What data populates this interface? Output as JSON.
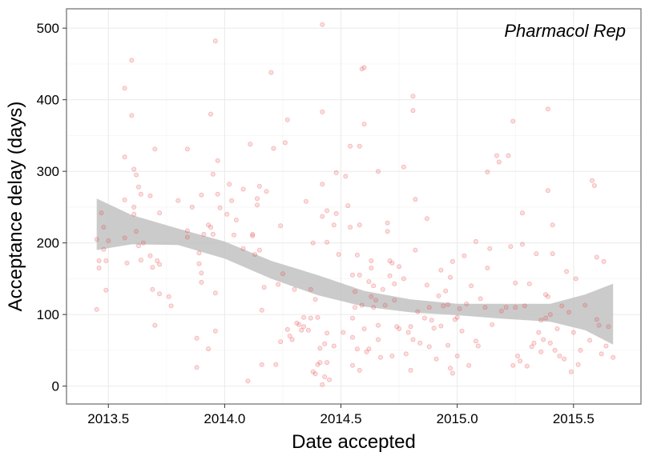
{
  "chart_data": {
    "type": "scatter",
    "title": "",
    "annotation": "Pharmacol Rep",
    "xlabel": "Date accepted",
    "ylabel": "Acceptance delay (days)",
    "xlim": [
      2013.32,
      2015.79
    ],
    "ylim": [
      -25,
      527
    ],
    "xticks": [
      2013.5,
      2014.0,
      2014.5,
      2015.0,
      2015.5
    ],
    "xtick_labels": [
      "2013.5",
      "2014.0",
      "2014.5",
      "2015.0",
      "2015.5"
    ],
    "yticks": [
      0,
      100,
      200,
      300,
      400,
      500
    ],
    "ytick_labels": [
      "0",
      "100",
      "200",
      "300",
      "400",
      "500"
    ],
    "grid": true,
    "legend": "none",
    "colors": {
      "points": "#e8474a",
      "band": "#c2c2c2",
      "panel_border": "#7f7f7f",
      "grid_major": "#ebebeb",
      "grid_minor": "#f5f5f5"
    },
    "smooth_band": {
      "x": [
        2013.45,
        2013.6,
        2013.8,
        2014.0,
        2014.2,
        2014.4,
        2014.6,
        2014.8,
        2015.0,
        2015.2,
        2015.4,
        2015.55,
        2015.67
      ],
      "lower": [
        190,
        198,
        197,
        178,
        150,
        127,
        111,
        103,
        99,
        94,
        90,
        78,
        58
      ],
      "upper": [
        262,
        239,
        220,
        202,
        175,
        155,
        133,
        121,
        115,
        115,
        115,
        128,
        143
      ]
    },
    "points": [
      [
        2013.45,
        205
      ],
      [
        2013.45,
        107
      ],
      [
        2013.46,
        175
      ],
      [
        2013.46,
        165
      ],
      [
        2013.47,
        242
      ],
      [
        2013.48,
        222
      ],
      [
        2013.48,
        191
      ],
      [
        2013.49,
        134
      ],
      [
        2013.5,
        203
      ],
      [
        2013.49,
        175
      ],
      [
        2013.57,
        416
      ],
      [
        2013.57,
        320
      ],
      [
        2013.57,
        260
      ],
      [
        2013.57,
        207
      ],
      [
        2013.58,
        172
      ],
      [
        2013.6,
        455
      ],
      [
        2013.6,
        378
      ],
      [
        2013.61,
        303
      ],
      [
        2013.61,
        250
      ],
      [
        2013.61,
        240
      ],
      [
        2013.62,
        295
      ],
      [
        2013.62,
        216
      ],
      [
        2013.63,
        196
      ],
      [
        2013.63,
        278
      ],
      [
        2013.64,
        268
      ],
      [
        2013.65,
        200
      ],
      [
        2013.64,
        176
      ],
      [
        2013.68,
        266
      ],
      [
        2013.68,
        182
      ],
      [
        2013.69,
        166
      ],
      [
        2013.69,
        135
      ],
      [
        2013.7,
        331
      ],
      [
        2013.7,
        85
      ],
      [
        2013.71,
        175
      ],
      [
        2013.72,
        242
      ],
      [
        2013.72,
        170
      ],
      [
        2013.72,
        129
      ],
      [
        2013.76,
        125
      ],
      [
        2013.77,
        112
      ],
      [
        2013.8,
        259
      ],
      [
        2013.84,
        331
      ],
      [
        2013.84,
        217
      ],
      [
        2013.84,
        208
      ],
      [
        2013.86,
        250
      ],
      [
        2013.88,
        67
      ],
      [
        2013.88,
        26
      ],
      [
        2013.89,
        186
      ],
      [
        2013.89,
        171
      ],
      [
        2013.9,
        158
      ],
      [
        2013.9,
        145
      ],
      [
        2013.91,
        212
      ],
      [
        2013.9,
        267
      ],
      [
        2013.93,
        225
      ],
      [
        2013.93,
        52
      ],
      [
        2013.94,
        380
      ],
      [
        2013.94,
        222
      ],
      [
        2013.95,
        296
      ],
      [
        2013.95,
        212
      ],
      [
        2013.96,
        482
      ],
      [
        2013.96,
        77
      ],
      [
        2013.96,
        130
      ],
      [
        2013.97,
        315
      ],
      [
        2013.97,
        268
      ],
      [
        2013.98,
        249
      ],
      [
        2014.01,
        240
      ],
      [
        2014.02,
        282
      ],
      [
        2014.03,
        259
      ],
      [
        2014.04,
        211
      ],
      [
        2014.05,
        232
      ],
      [
        2014.08,
        275
      ],
      [
        2014.08,
        192
      ],
      [
        2014.1,
        7
      ],
      [
        2014.11,
        338
      ],
      [
        2014.12,
        212
      ],
      [
        2014.12,
        210
      ],
      [
        2014.13,
        184
      ],
      [
        2014.14,
        262
      ],
      [
        2014.14,
        253
      ],
      [
        2014.15,
        279
      ],
      [
        2014.15,
        190
      ],
      [
        2014.16,
        30
      ],
      [
        2014.16,
        106
      ],
      [
        2014.17,
        138
      ],
      [
        2014.18,
        272
      ],
      [
        2014.2,
        438
      ],
      [
        2014.21,
        332
      ],
      [
        2014.22,
        30
      ],
      [
        2014.23,
        142
      ],
      [
        2014.24,
        224
      ],
      [
        2014.25,
        157
      ],
      [
        2014.24,
        62
      ],
      [
        2014.26,
        340
      ],
      [
        2014.27,
        372
      ],
      [
        2014.27,
        79
      ],
      [
        2014.28,
        70
      ],
      [
        2014.29,
        65
      ],
      [
        2014.3,
        135
      ],
      [
        2014.31,
        88
      ],
      [
        2014.32,
        86
      ],
      [
        2014.33,
        78
      ],
      [
        2014.34,
        83
      ],
      [
        2014.34,
        96
      ],
      [
        2014.35,
        258
      ],
      [
        2014.36,
        78
      ],
      [
        2014.37,
        135
      ],
      [
        2014.37,
        95
      ],
      [
        2014.38,
        200
      ],
      [
        2014.38,
        20
      ],
      [
        2014.39,
        121
      ],
      [
        2014.39,
        17
      ],
      [
        2014.4,
        96
      ],
      [
        2014.4,
        30
      ],
      [
        2014.41,
        53
      ],
      [
        2014.41,
        33
      ],
      [
        2014.42,
        505
      ],
      [
        2014.42,
        383
      ],
      [
        2014.42,
        282
      ],
      [
        2014.42,
        237
      ],
      [
        2014.42,
        2
      ],
      [
        2014.43,
        59
      ],
      [
        2014.43,
        13
      ],
      [
        2014.44,
        245
      ],
      [
        2014.44,
        201
      ],
      [
        2014.44,
        74
      ],
      [
        2014.44,
        33
      ],
      [
        2014.45,
        9
      ],
      [
        2014.47,
        225
      ],
      [
        2014.47,
        56
      ],
      [
        2014.48,
        298
      ],
      [
        2014.48,
        241
      ],
      [
        2014.49,
        184
      ],
      [
        2014.51,
        75
      ],
      [
        2014.52,
        293
      ],
      [
        2014.53,
        252
      ],
      [
        2014.54,
        335
      ],
      [
        2014.54,
        222
      ],
      [
        2014.55,
        155
      ],
      [
        2014.55,
        95
      ],
      [
        2014.55,
        68
      ],
      [
        2014.55,
        29
      ],
      [
        2014.56,
        132
      ],
      [
        2014.56,
        110
      ],
      [
        2014.57,
        183
      ],
      [
        2014.57,
        52
      ],
      [
        2014.58,
        335
      ],
      [
        2014.58,
        225
      ],
      [
        2014.58,
        155
      ],
      [
        2014.58,
        22
      ],
      [
        2014.59,
        443
      ],
      [
        2014.59,
        113
      ],
      [
        2014.6,
        445
      ],
      [
        2014.6,
        366
      ],
      [
        2014.6,
        80
      ],
      [
        2014.61,
        48
      ],
      [
        2014.62,
        146
      ],
      [
        2014.62,
        52
      ],
      [
        2014.63,
        175
      ],
      [
        2014.63,
        165
      ],
      [
        2014.63,
        125
      ],
      [
        2014.64,
        140
      ],
      [
        2014.64,
        110
      ],
      [
        2014.65,
        120
      ],
      [
        2014.66,
        65
      ],
      [
        2014.66,
        300
      ],
      [
        2014.66,
        85
      ],
      [
        2014.67,
        40
      ],
      [
        2014.68,
        135
      ],
      [
        2014.69,
        113
      ],
      [
        2014.7,
        228
      ],
      [
        2014.7,
        216
      ],
      [
        2014.71,
        175
      ],
      [
        2014.71,
        154
      ],
      [
        2014.72,
        172
      ],
      [
        2014.72,
        42
      ],
      [
        2014.73,
        143
      ],
      [
        2014.73,
        120
      ],
      [
        2014.74,
        83
      ],
      [
        2014.75,
        167
      ],
      [
        2014.75,
        80
      ],
      [
        2014.77,
        306
      ],
      [
        2014.77,
        150
      ],
      [
        2014.78,
        45
      ],
      [
        2014.79,
        75
      ],
      [
        2014.8,
        83
      ],
      [
        2014.8,
        22
      ],
      [
        2014.81,
        405
      ],
      [
        2014.81,
        385
      ],
      [
        2014.81,
        65
      ],
      [
        2014.82,
        261
      ],
      [
        2014.82,
        190
      ],
      [
        2014.83,
        104
      ],
      [
        2014.84,
        60
      ],
      [
        2014.86,
        95
      ],
      [
        2014.87,
        234
      ],
      [
        2014.87,
        141
      ],
      [
        2014.88,
        110
      ],
      [
        2014.88,
        55
      ],
      [
        2014.89,
        92
      ],
      [
        2014.9,
        81
      ],
      [
        2014.91,
        38
      ],
      [
        2014.92,
        126
      ],
      [
        2014.93,
        162
      ],
      [
        2014.93,
        84
      ],
      [
        2014.94,
        112
      ],
      [
        2014.95,
        133
      ],
      [
        2014.96,
        114
      ],
      [
        2014.96,
        57
      ],
      [
        2014.97,
        152
      ],
      [
        2014.97,
        25
      ],
      [
        2014.98,
        174
      ],
      [
        2014.98,
        18
      ],
      [
        2014.99,
        93
      ],
      [
        2015.0,
        42
      ],
      [
        2015.0,
        96
      ],
      [
        2015.01,
        108
      ],
      [
        2015.02,
        77
      ],
      [
        2015.03,
        182
      ],
      [
        2015.04,
        115
      ],
      [
        2015.05,
        29
      ],
      [
        2015.06,
        140
      ],
      [
        2015.08,
        202
      ],
      [
        2015.08,
        63
      ],
      [
        2015.09,
        56
      ],
      [
        2015.1,
        122
      ],
      [
        2015.12,
        110
      ],
      [
        2015.13,
        299
      ],
      [
        2015.13,
        165
      ],
      [
        2015.14,
        192
      ],
      [
        2015.15,
        86
      ],
      [
        2015.17,
        322
      ],
      [
        2015.18,
        313
      ],
      [
        2015.19,
        105
      ],
      [
        2015.21,
        110
      ],
      [
        2015.22,
        322
      ],
      [
        2015.23,
        195
      ],
      [
        2015.24,
        370
      ],
      [
        2015.24,
        29
      ],
      [
        2015.25,
        144
      ],
      [
        2015.25,
        110
      ],
      [
        2015.26,
        42
      ],
      [
        2015.27,
        35
      ],
      [
        2015.28,
        242
      ],
      [
        2015.28,
        198
      ],
      [
        2015.29,
        112
      ],
      [
        2015.3,
        28
      ],
      [
        2015.31,
        143
      ],
      [
        2015.32,
        55
      ],
      [
        2015.33,
        60
      ],
      [
        2015.34,
        185
      ],
      [
        2015.35,
        75
      ],
      [
        2015.36,
        92
      ],
      [
        2015.36,
        48
      ],
      [
        2015.37,
        65
      ],
      [
        2015.38,
        128
      ],
      [
        2015.38,
        95
      ],
      [
        2015.39,
        387
      ],
      [
        2015.39,
        273
      ],
      [
        2015.39,
        125
      ],
      [
        2015.4,
        100
      ],
      [
        2015.4,
        60
      ],
      [
        2015.41,
        225
      ],
      [
        2015.41,
        185
      ],
      [
        2015.42,
        50
      ],
      [
        2015.43,
        80
      ],
      [
        2015.44,
        42
      ],
      [
        2015.45,
        112
      ],
      [
        2015.46,
        38
      ],
      [
        2015.47,
        160
      ],
      [
        2015.48,
        103
      ],
      [
        2015.49,
        20
      ],
      [
        2015.5,
        75
      ],
      [
        2015.51,
        150
      ],
      [
        2015.52,
        30
      ],
      [
        2015.53,
        50
      ],
      [
        2015.55,
        113
      ],
      [
        2015.57,
        64
      ],
      [
        2015.58,
        287
      ],
      [
        2015.59,
        280
      ],
      [
        2015.6,
        180
      ],
      [
        2015.6,
        93
      ],
      [
        2015.61,
        85
      ],
      [
        2015.62,
        45
      ],
      [
        2015.63,
        174
      ],
      [
        2015.64,
        56
      ],
      [
        2015.65,
        83
      ],
      [
        2015.67,
        40
      ]
    ]
  }
}
